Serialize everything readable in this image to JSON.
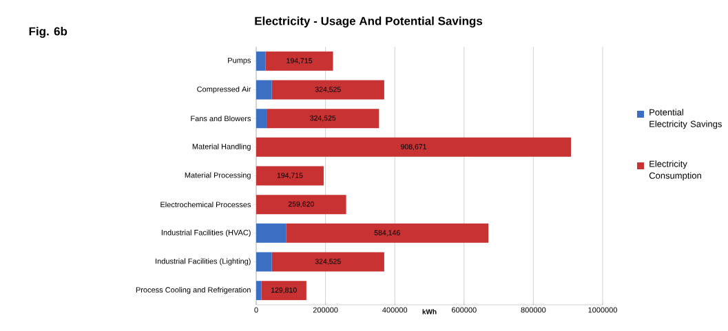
{
  "chart_data": {
    "type": "bar",
    "orientation": "horizontal",
    "stacked": true,
    "title": "Electricity - Usage And Potential Savings",
    "annotations": [
      "Fig. 6b"
    ],
    "xlabel": "kWh",
    "categories": [
      "Pumps",
      "Compressed Air",
      "Fans and Blowers",
      "Material Handling",
      "Material Processing",
      "Electrochemical Processes",
      "Industrial Facilities (HVAC)",
      "Industrial Facilities (Lighting)",
      "Process Cooling and Refrigeration"
    ],
    "series": [
      {
        "name": "Potential Electricity Savings",
        "color": "#3a6fc4",
        "values": [
          27000,
          45000,
          30000,
          0,
          0,
          0,
          86000,
          45000,
          15000
        ]
      },
      {
        "name": "Electricity Consumption",
        "color": "#c83232",
        "values": [
          194715,
          324525,
          324525,
          908671,
          194715,
          259620,
          584146,
          324525,
          129810
        ],
        "value_labels": [
          "194,715",
          "324,525",
          "324,525",
          "908,671",
          "194,715",
          "259,620",
          "584,146",
          "324,525",
          "129,810"
        ]
      }
    ],
    "xlim": [
      0,
      1000000
    ],
    "xticks": [
      0,
      200000,
      400000,
      600000,
      800000,
      1000000
    ],
    "grid": "x",
    "legend": "right"
  }
}
